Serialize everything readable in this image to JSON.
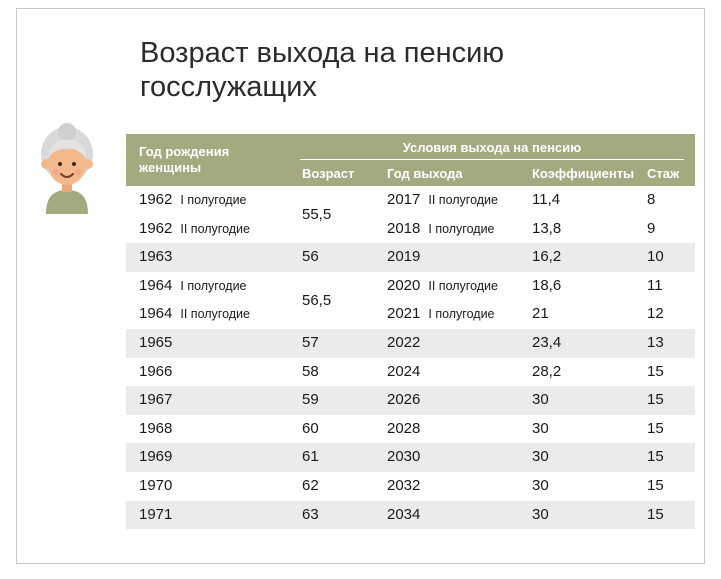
{
  "title": {
    "line1": "Возраст выхода на пенсию",
    "line2": "госслужащих"
  },
  "table": {
    "header": {
      "birth_year": "Год рождения женщины",
      "conditions": "Условия выхода на пенсию",
      "age": "Возраст",
      "exit_year": "Год выхода",
      "coefficients": "Коэффициенты",
      "experience": "Стаж"
    },
    "group1": {
      "age": "55,5",
      "rows": [
        {
          "birth": "1962",
          "birth_half": "I полугодие",
          "year": "2017",
          "year_half": "II полугодие",
          "coef": "11,4",
          "exp": "8"
        },
        {
          "birth": "1962",
          "birth_half": "II полугодие",
          "year": "2018",
          "year_half": "I полугодие",
          "coef": "13,8",
          "exp": "9"
        }
      ]
    },
    "row1963": {
      "birth": "1963",
      "age": "56",
      "year": "2019",
      "coef": "16,2",
      "exp": "10"
    },
    "group2": {
      "age": "56,5",
      "rows": [
        {
          "birth": "1964",
          "birth_half": "I полугодие",
          "year": "2020",
          "year_half": "II полугодие",
          "coef": "18,6",
          "exp": "11"
        },
        {
          "birth": "1964",
          "birth_half": "II полугодие",
          "year": "2021",
          "year_half": "I полугодие",
          "coef": "21",
          "exp": "12"
        }
      ]
    },
    "rows": [
      {
        "birth": "1965",
        "age": "57",
        "year": "2022",
        "coef": "23,4",
        "exp": "13"
      },
      {
        "birth": "1966",
        "age": "58",
        "year": "2024",
        "coef": "28,2",
        "exp": "15"
      },
      {
        "birth": "1967",
        "age": "59",
        "year": "2026",
        "coef": "30",
        "exp": "15"
      },
      {
        "birth": "1968",
        "age": "60",
        "year": "2028",
        "coef": "30",
        "exp": "15"
      },
      {
        "birth": "1969",
        "age": "61",
        "year": "2030",
        "coef": "30",
        "exp": "15"
      },
      {
        "birth": "1970",
        "age": "62",
        "year": "2032",
        "coef": "30",
        "exp": "15"
      },
      {
        "birth": "1971",
        "age": "63",
        "year": "2034",
        "coef": "30",
        "exp": "15"
      }
    ]
  },
  "colors": {
    "header_bg": "#a5a980",
    "row_shade": "#ebebeb",
    "hair": "#d9d9d9",
    "face": "#f3b98a",
    "shirt": "#a5a980"
  },
  "icons": {
    "avatar": "old-woman-avatar-icon"
  }
}
